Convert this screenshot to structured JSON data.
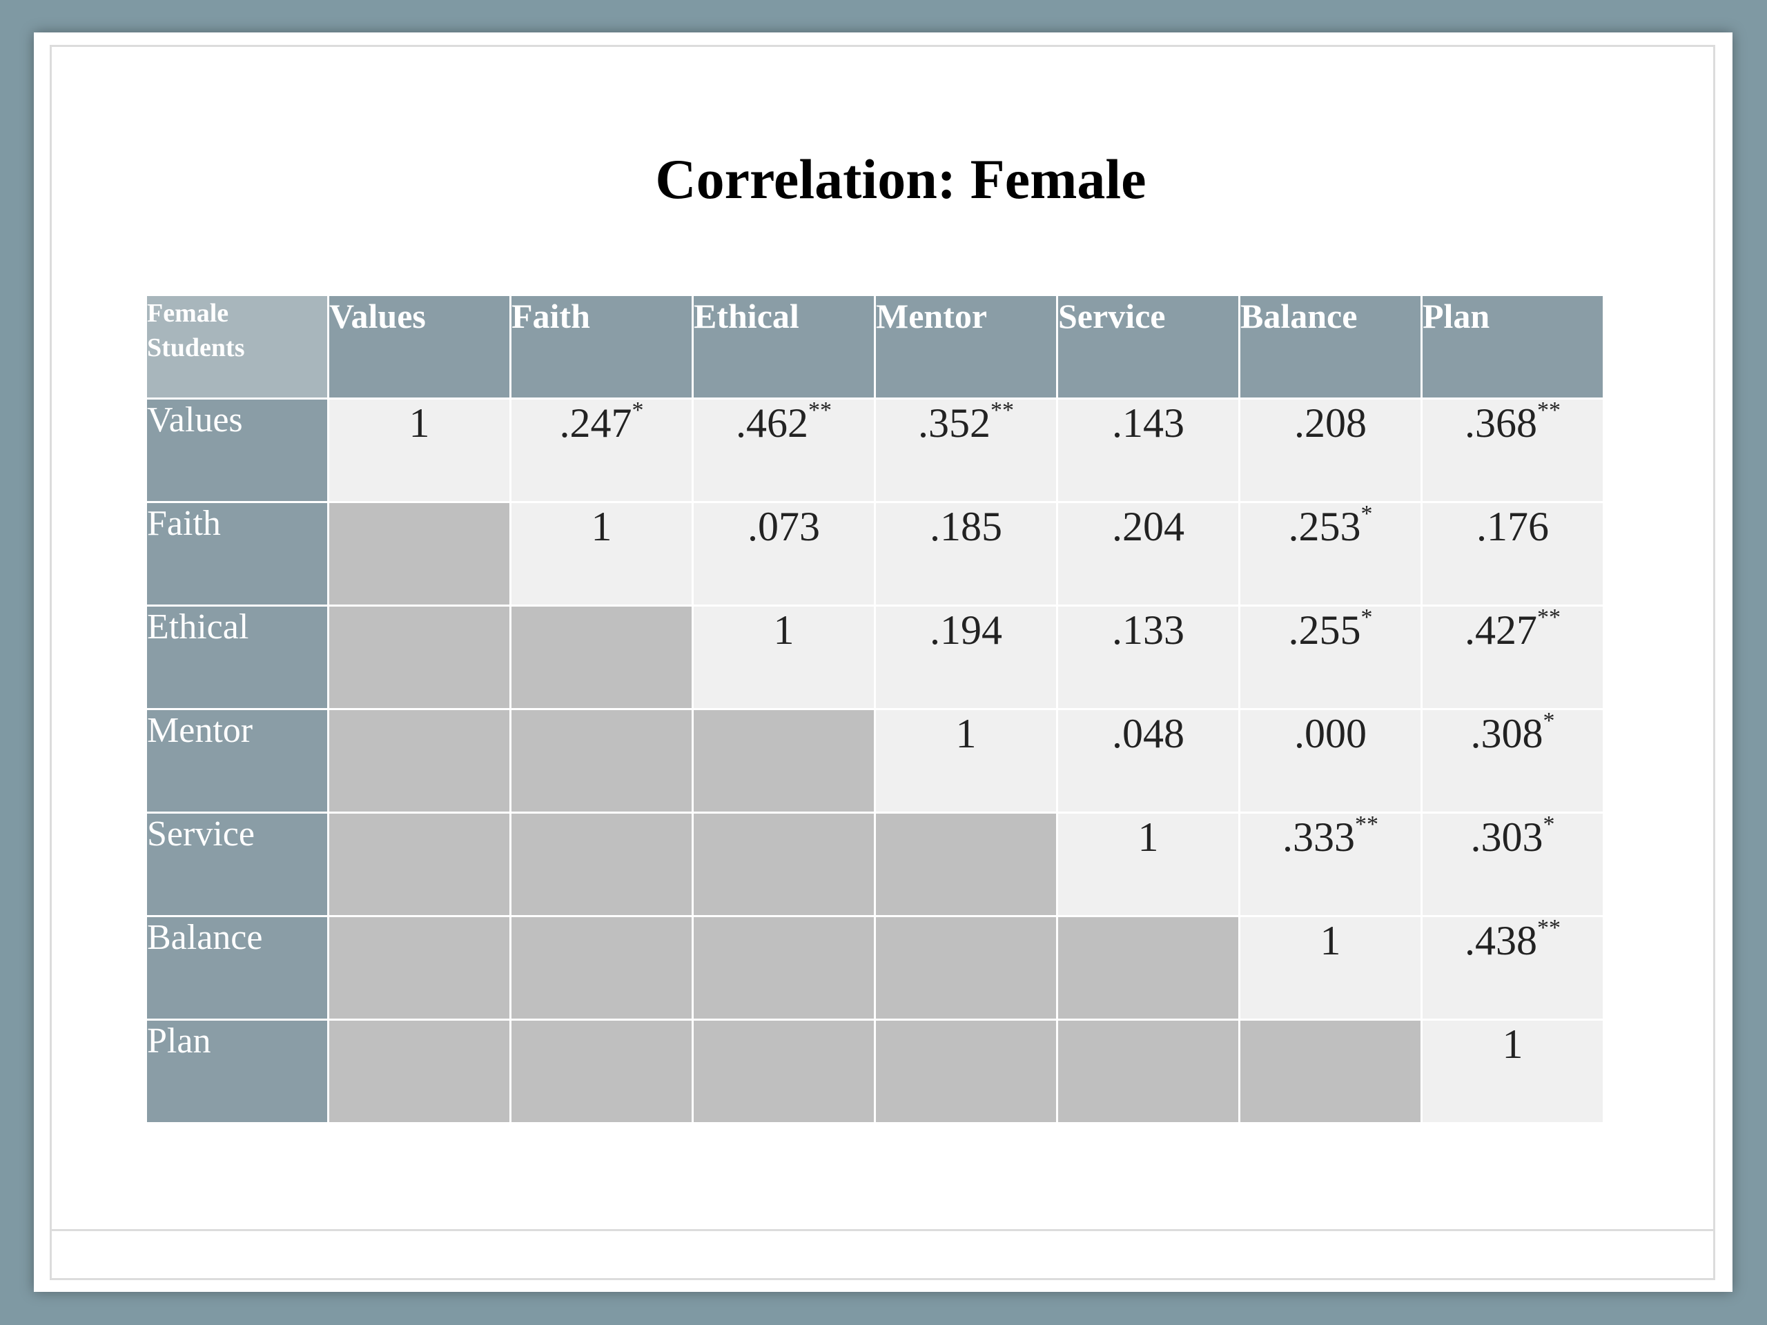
{
  "title": "Correlation: Female",
  "table": {
    "corner_line1": "Female",
    "corner_line2": "Students",
    "columns": [
      "Values",
      "Faith",
      "Ethical",
      "Mentor",
      "Service",
      "Balance",
      "Plan"
    ],
    "rows": [
      {
        "label": "Values",
        "cells": [
          {
            "v": "1",
            "s": ""
          },
          {
            "v": ".247",
            "s": "*"
          },
          {
            "v": ".462",
            "s": "**"
          },
          {
            "v": ".352",
            "s": "**"
          },
          {
            "v": ".143",
            "s": ""
          },
          {
            "v": ".208",
            "s": ""
          },
          {
            "v": ".368",
            "s": "**"
          }
        ]
      },
      {
        "label": "Faith",
        "cells": [
          null,
          {
            "v": "1",
            "s": ""
          },
          {
            "v": ".073",
            "s": ""
          },
          {
            "v": ".185",
            "s": ""
          },
          {
            "v": ".204",
            "s": ""
          },
          {
            "v": ".253",
            "s": "*"
          },
          {
            "v": ".176",
            "s": ""
          }
        ]
      },
      {
        "label": "Ethical",
        "cells": [
          null,
          null,
          {
            "v": "1",
            "s": ""
          },
          {
            "v": ".194",
            "s": ""
          },
          {
            "v": ".133",
            "s": ""
          },
          {
            "v": ".255",
            "s": "*"
          },
          {
            "v": ".427",
            "s": "**"
          }
        ]
      },
      {
        "label": "Mentor",
        "cells": [
          null,
          null,
          null,
          {
            "v": "1",
            "s": ""
          },
          {
            "v": ".048",
            "s": ""
          },
          {
            "v": ".000",
            "s": ""
          },
          {
            "v": ".308",
            "s": "*"
          }
        ]
      },
      {
        "label": "Service",
        "cells": [
          null,
          null,
          null,
          null,
          {
            "v": "1",
            "s": ""
          },
          {
            "v": ".333",
            "s": "**"
          },
          {
            "v": ".303",
            "s": "*"
          }
        ]
      },
      {
        "label": "Balance",
        "cells": [
          null,
          null,
          null,
          null,
          null,
          {
            "v": "1",
            "s": ""
          },
          {
            "v": ".438",
            "s": "**"
          }
        ]
      },
      {
        "label": "Plan",
        "cells": [
          null,
          null,
          null,
          null,
          null,
          null,
          {
            "v": "1",
            "s": ""
          }
        ]
      }
    ]
  }
}
